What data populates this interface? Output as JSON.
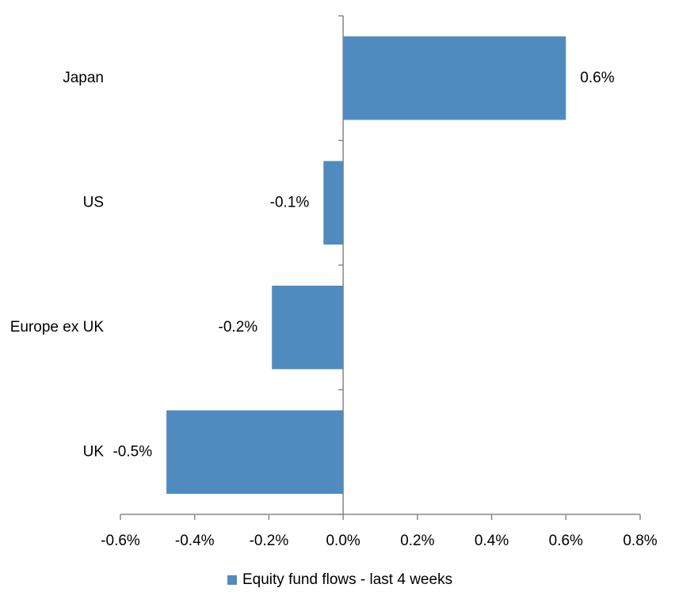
{
  "chart_data": {
    "type": "bar",
    "orientation": "horizontal",
    "categories": [
      "Japan",
      "US",
      "Europe ex UK",
      "UK"
    ],
    "series": [
      {
        "name": "Equity fund flows - last 4 weeks",
        "color": "#4f8bbf",
        "values": [
          0.6,
          -0.053,
          -0.192,
          -0.476
        ],
        "value_labels": [
          "0.6%",
          "-0.1%",
          "-0.2%",
          "-0.5%"
        ]
      }
    ],
    "xlim": [
      -0.6,
      0.8
    ],
    "xticks": [
      {
        "value": -0.6,
        "label": "-0.6%"
      },
      {
        "value": -0.4,
        "label": "-0.4%"
      },
      {
        "value": -0.2,
        "label": "-0.2%"
      },
      {
        "value": 0,
        "label": "0.0%"
      },
      {
        "value": 0.2,
        "label": "0.2%"
      },
      {
        "value": 0.4,
        "label": "0.4%"
      },
      {
        "value": 0.6,
        "label": "0.6%"
      },
      {
        "value": 0.8,
        "label": "0.8%"
      }
    ],
    "grid": false,
    "legend": "bottom"
  }
}
